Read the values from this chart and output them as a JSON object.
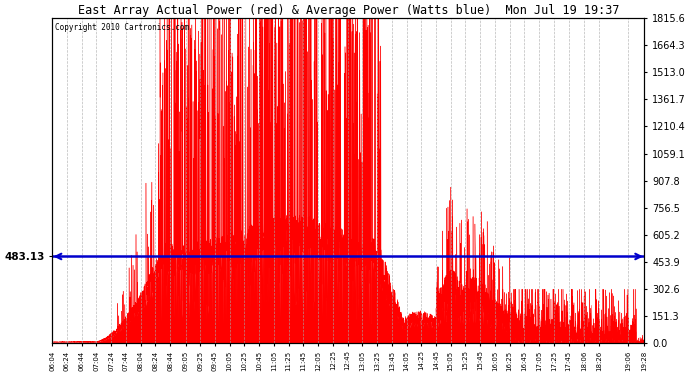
{
  "title": "East Array Actual Power (red) & Average Power (Watts blue)  Mon Jul 19 19:37",
  "copyright": "Copyright 2010 Cartronics.com",
  "average_power": 483.13,
  "ymax": 1815.6,
  "ymin": 0.0,
  "yticks_right": [
    0.0,
    151.3,
    302.6,
    453.9,
    605.2,
    756.5,
    907.8,
    1059.1,
    1210.4,
    1361.7,
    1513.0,
    1664.3,
    1815.6
  ],
  "background_color": "#ffffff",
  "fill_color": "#ff0000",
  "line_color": "#ff0000",
  "avg_line_color": "#0000cc",
  "grid_color": "#aaaaaa",
  "x_time_labels": [
    "06:04",
    "06:24",
    "06:44",
    "07:04",
    "07:24",
    "07:44",
    "08:04",
    "08:24",
    "08:44",
    "09:05",
    "09:25",
    "09:45",
    "10:05",
    "10:25",
    "10:45",
    "11:05",
    "11:25",
    "11:45",
    "12:05",
    "12:25",
    "12:45",
    "13:05",
    "13:25",
    "13:45",
    "14:05",
    "14:25",
    "14:45",
    "15:05",
    "15:25",
    "15:45",
    "16:05",
    "16:25",
    "16:45",
    "17:05",
    "17:25",
    "17:45",
    "18:06",
    "18:26",
    "19:06",
    "19:28"
  ],
  "seed": 7
}
